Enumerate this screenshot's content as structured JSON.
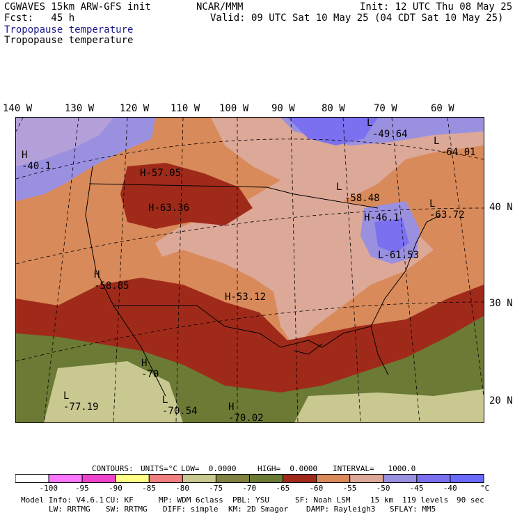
{
  "header": {
    "model": "CGWAVES 15km ARW-GFS init",
    "center": "NCAR/MMM",
    "init": "Init: 12 UTC Thu 08 May 25",
    "fcst": "Fcst:   45 h",
    "valid": "Valid: 09 UTC Sat 10 May 25 (04 CDT Sat 10 May 25)",
    "field_colored": "Tropopause temperature",
    "field_contour": "Tropopause temperature"
  },
  "longitude_labels": [
    "140 W",
    "130 W",
    "120 W",
    "110 W",
    "100 W",
    "90 W",
    "80 W",
    "70 W",
    "60 W"
  ],
  "latitude_labels": [
    "40 N",
    "30 N",
    "20 N"
  ],
  "map_labels": [
    {
      "kind": "H",
      "value": "-40.1"
    },
    {
      "kind": "H",
      "value": "-57.05"
    },
    {
      "kind": "H",
      "value": "-63.36"
    },
    {
      "kind": "L",
      "value": "-49.64"
    },
    {
      "kind": "L",
      "value": "-64.01"
    },
    {
      "kind": "L",
      "value": "-58.48"
    },
    {
      "kind": "L",
      "value": "-63.72"
    },
    {
      "kind": "H",
      "value": "-46.1"
    },
    {
      "kind": "L",
      "value": "-61.53"
    },
    {
      "kind": "H",
      "value": "-58.85"
    },
    {
      "kind": "H",
      "value": "-53.12"
    },
    {
      "kind": "H",
      "value": "-70"
    },
    {
      "kind": "L",
      "value": "-77.19"
    },
    {
      "kind": "L",
      "value": "-70.54"
    },
    {
      "kind": "H",
      "value": "-70.02"
    }
  ],
  "contours_line": {
    "contours": "CONTOURS:",
    "units": "UNITS=°C",
    "low": "LOW=  0.0000",
    "high": "HIGH=  0.0000",
    "interval": "INTERVAL=   1000.0"
  },
  "colorbar": {
    "colors": [
      "#ffffff",
      "#ff77ff",
      "#ee44cc",
      "#ffff88",
      "#f08080",
      "#c8c890",
      "#808040",
      "#6b7a35",
      "#a02a1a",
      "#d98a5a",
      "#dca898",
      "#9a90e0",
      "#7a70f0",
      "#6a6aff"
    ],
    "labels": [
      "-100",
      "-95",
      "-90",
      "-85",
      "-80",
      "-75",
      "-70",
      "-65",
      "-60",
      "-55",
      "-50",
      "-45",
      "-40"
    ],
    "unit": "°C"
  },
  "footer": {
    "line1": [
      "Model Info: V4.6.1",
      "CU: KF",
      "MP: WDM 6class",
      "PBL: YSU",
      "SF: Noah LSM",
      "15 km",
      "119 levels",
      "90 sec"
    ],
    "line2": [
      "LW: RRTMG",
      "SW: RRTMG",
      "DIFF: simple",
      "KM: 2D Smagor",
      "DAMP: Rayleigh3",
      "SFLAY: MM5"
    ]
  }
}
